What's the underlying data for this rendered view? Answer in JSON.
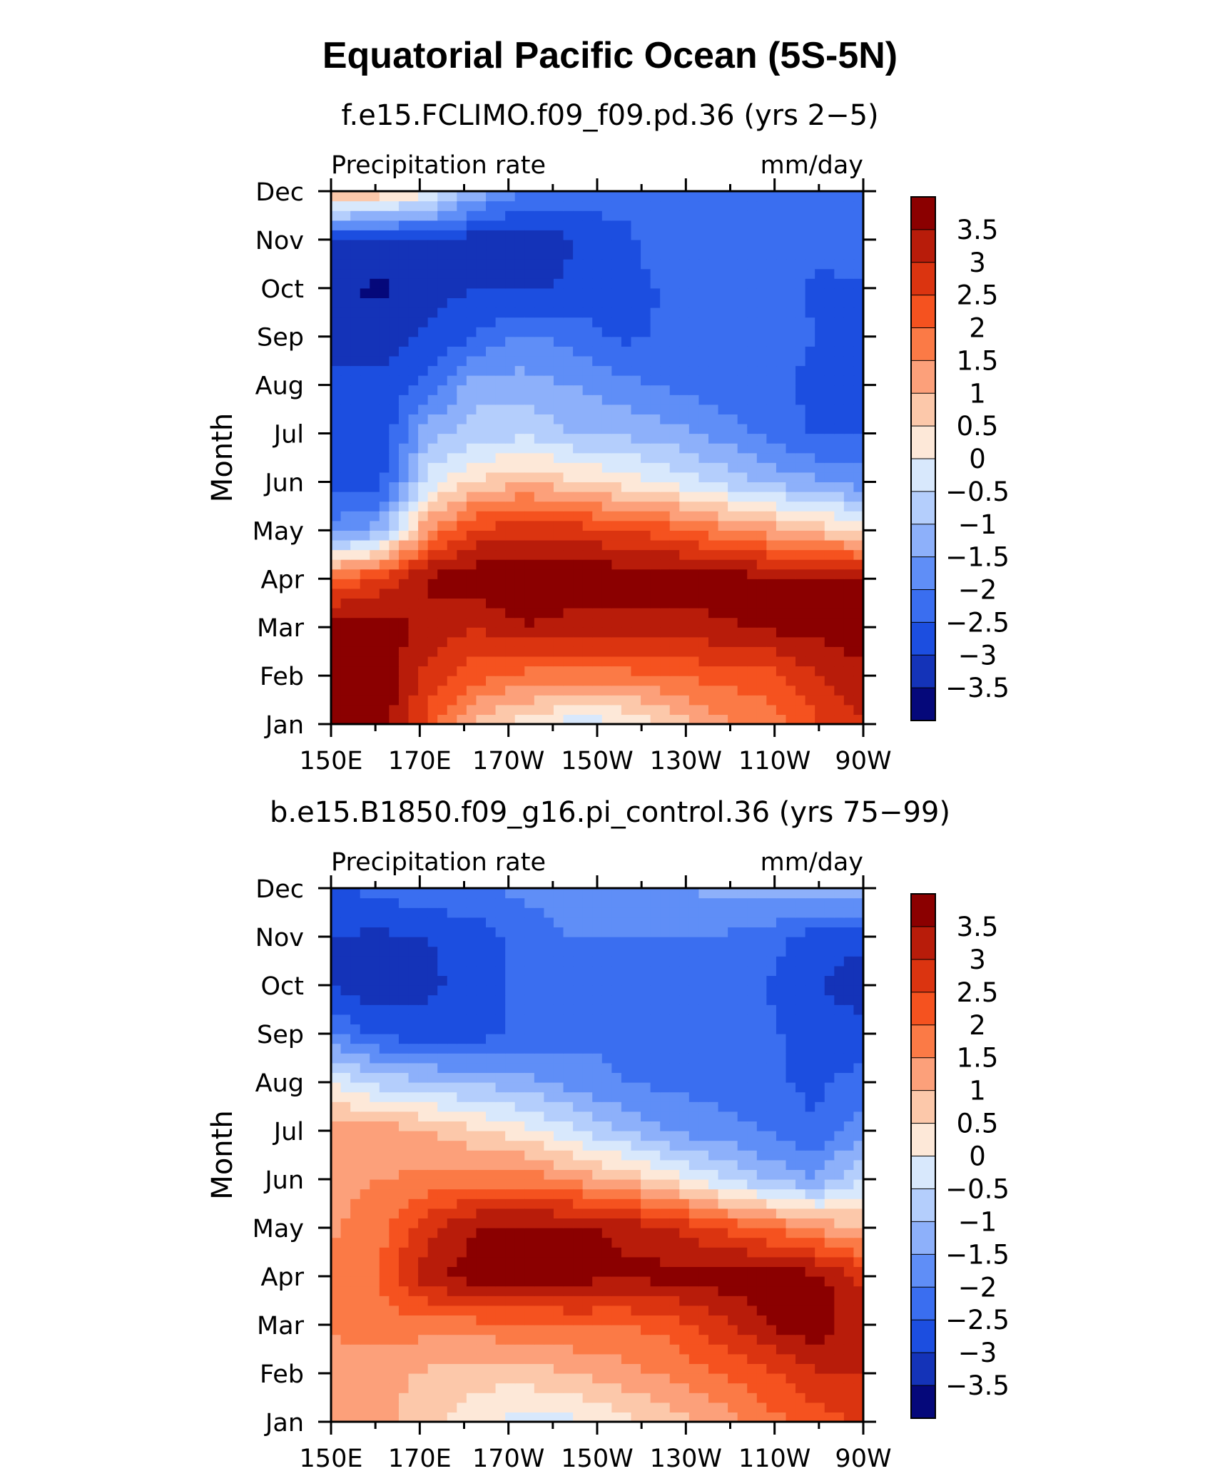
{
  "title": "Equatorial Pacific Ocean (5S-5N)",
  "chart_data": [
    {
      "type": "heatmap",
      "subtitle": "f.e15.FCLIMO.f09_f09.pd.36 (yrs 2−5)",
      "variable_label": "Precipitation rate",
      "units_label": "mm/day",
      "ylabel": "Month",
      "x_ticks": [
        "150E",
        "170E",
        "170W",
        "150W",
        "130W",
        "110W",
        "90W"
      ],
      "x_values": [
        150,
        170,
        190,
        210,
        230,
        250,
        270
      ],
      "y_ticks": [
        "Jan",
        "Feb",
        "Mar",
        "Apr",
        "May",
        "Jun",
        "Jul",
        "Aug",
        "Sep",
        "Oct",
        "Nov",
        "Dec"
      ],
      "grid": [
        [
          3.9,
          3.9,
          2.4,
          0.8,
          0.3,
          -0.3,
          -0.1,
          0.6,
          1.4,
          1.6,
          2.4,
          3.0
        ],
        [
          3.9,
          3.9,
          2.8,
          2.2,
          1.8,
          1.7,
          1.8,
          2.0,
          2.2,
          2.3,
          2.9,
          3.4
        ],
        [
          3.9,
          3.9,
          3.3,
          3.0,
          3.5,
          3.3,
          3.3,
          3.2,
          3.4,
          3.6,
          3.7,
          3.8
        ],
        [
          2.0,
          2.6,
          3.6,
          3.9,
          3.9,
          3.9,
          3.9,
          3.9,
          3.8,
          3.7,
          3.7,
          3.5
        ],
        [
          -1.8,
          -1.3,
          1.5,
          2.6,
          2.9,
          2.8,
          2.5,
          2.2,
          1.7,
          1.3,
          0.8,
          0.4
        ],
        [
          -2.6,
          -2.7,
          -0.3,
          0.6,
          1.0,
          0.6,
          0.3,
          -0.1,
          -0.6,
          -1.1,
          -1.4,
          -1.8
        ],
        [
          -2.6,
          -3.0,
          -1.2,
          -0.8,
          -0.6,
          -1.0,
          -1.1,
          -1.3,
          -1.7,
          -2.1,
          -2.6,
          -2.5
        ],
        [
          -2.9,
          -2.9,
          -2.4,
          -1.2,
          -1.3,
          -1.5,
          -1.8,
          -2.1,
          -2.3,
          -2.4,
          -2.6,
          -2.5
        ],
        [
          -3.1,
          -3.2,
          -2.9,
          -2.5,
          -1.9,
          -2.2,
          -2.6,
          -2.4,
          -2.2,
          -2.2,
          -2.5,
          -2.6
        ],
        [
          -3.4,
          -3.6,
          -3.2,
          -3.0,
          -3.1,
          -2.9,
          -2.8,
          -2.4,
          -2.1,
          -2.2,
          -2.6,
          -2.6
        ],
        [
          -3.0,
          -3.2,
          -3.0,
          -3.3,
          -3.4,
          -3.0,
          -2.7,
          -2.1,
          -2.1,
          -2.2,
          -2.3,
          -2.2
        ],
        [
          1.2,
          0.9,
          0.2,
          -1.2,
          -2.0,
          -2.2,
          -2.2,
          -2.0,
          -2.0,
          -2.1,
          -2.2,
          -2.1
        ]
      ],
      "colorbar": {
        "labels": [
          "3.5",
          "3",
          "2.5",
          "2",
          "1.5",
          "1",
          "0.5",
          "0",
          "−0.5",
          "−1",
          "−1.5",
          "−2",
          "−2.5",
          "−3",
          "−3.5"
        ],
        "levels": [
          3.5,
          3,
          2.5,
          2,
          1.5,
          1,
          0.5,
          0,
          -0.5,
          -1,
          -1.5,
          -2,
          -2.5,
          -3,
          -3.5
        ],
        "colors": [
          "#8b0000",
          "#b81c0a",
          "#db3410",
          "#f5521f",
          "#fb7a46",
          "#fca07a",
          "#fcc8aa",
          "#fde8d8",
          "#d8e8fc",
          "#b4cefc",
          "#8db0fa",
          "#5f8ef7",
          "#3a6ef0",
          "#1c4ee0",
          "#1433b8",
          "#05087a"
        ]
      }
    },
    {
      "type": "heatmap",
      "subtitle": "b.e15.B1850.f09_g16.pi_control.36 (yrs 75−99)",
      "variable_label": "Precipitation rate",
      "units_label": "mm/day",
      "ylabel": "Month",
      "x_ticks": [
        "150E",
        "170E",
        "170W",
        "150W",
        "130W",
        "110W",
        "90W"
      ],
      "x_values": [
        150,
        170,
        190,
        210,
        230,
        250,
        270
      ],
      "y_ticks": [
        "Jan",
        "Feb",
        "Mar",
        "Apr",
        "May",
        "Jun",
        "Jul",
        "Aug",
        "Sep",
        "Oct",
        "Nov",
        "Dec"
      ],
      "grid": [
        [
          1.2,
          1.3,
          0.6,
          0.2,
          -0.2,
          -0.1,
          0.3,
          0.7,
          1.2,
          1.8,
          2.2,
          2.6
        ],
        [
          1.4,
          1.2,
          0.9,
          0.7,
          0.7,
          1.0,
          1.3,
          1.6,
          2.0,
          2.4,
          2.9,
          3.0
        ],
        [
          1.5,
          1.8,
          1.7,
          1.8,
          1.9,
          2.0,
          2.0,
          2.2,
          2.8,
          3.5,
          3.9,
          3.1
        ],
        [
          1.6,
          2.0,
          3.3,
          3.8,
          3.8,
          3.7,
          3.6,
          3.7,
          3.8,
          3.8,
          3.7,
          2.9
        ],
        [
          1.4,
          1.8,
          2.9,
          3.5,
          3.7,
          3.6,
          3.4,
          3.0,
          2.5,
          2.0,
          1.4,
          0.9
        ],
        [
          1.3,
          1.5,
          1.6,
          1.8,
          1.8,
          1.4,
          0.9,
          0.4,
          -0.4,
          -1.1,
          -1.5,
          -0.4
        ],
        [
          1.2,
          1.3,
          1.0,
          0.6,
          0.2,
          -0.4,
          -1.0,
          -1.6,
          -1.8,
          -2.0,
          -2.5,
          -1.6
        ],
        [
          0.0,
          -0.7,
          -0.9,
          -1.1,
          -1.3,
          -1.7,
          -2.0,
          -2.1,
          -2.2,
          -2.4,
          -2.6,
          -2.3
        ],
        [
          -2.0,
          -2.6,
          -2.8,
          -2.7,
          -2.4,
          -2.2,
          -2.1,
          -2.1,
          -2.1,
          -2.4,
          -2.7,
          -2.8
        ],
        [
          -3.0,
          -3.4,
          -3.1,
          -2.8,
          -2.3,
          -2.1,
          -2.1,
          -2.1,
          -2.1,
          -2.5,
          -3.0,
          -3.3
        ],
        [
          -3.0,
          -3.1,
          -3.0,
          -2.8,
          -2.2,
          -2.0,
          -2.0,
          -2.0,
          -2.0,
          -2.3,
          -2.7,
          -2.9
        ],
        [
          -2.5,
          -2.4,
          -2.1,
          -2.0,
          -1.9,
          -1.8,
          -1.6,
          -1.6,
          -1.3,
          -1.2,
          -1.1,
          -1.0
        ]
      ],
      "colorbar": {
        "labels": [
          "3.5",
          "3",
          "2.5",
          "2",
          "1.5",
          "1",
          "0.5",
          "0",
          "−0.5",
          "−1",
          "−1.5",
          "−2",
          "−2.5",
          "−3",
          "−3.5"
        ],
        "levels": [
          3.5,
          3,
          2.5,
          2,
          1.5,
          1,
          0.5,
          0,
          -0.5,
          -1,
          -1.5,
          -2,
          -2.5,
          -3,
          -3.5
        ],
        "colors": [
          "#8b0000",
          "#b81c0a",
          "#db3410",
          "#f5521f",
          "#fb7a46",
          "#fca07a",
          "#fcc8aa",
          "#fde8d8",
          "#d8e8fc",
          "#b4cefc",
          "#8db0fa",
          "#5f8ef7",
          "#3a6ef0",
          "#1c4ee0",
          "#1433b8",
          "#05087a"
        ]
      }
    }
  ]
}
